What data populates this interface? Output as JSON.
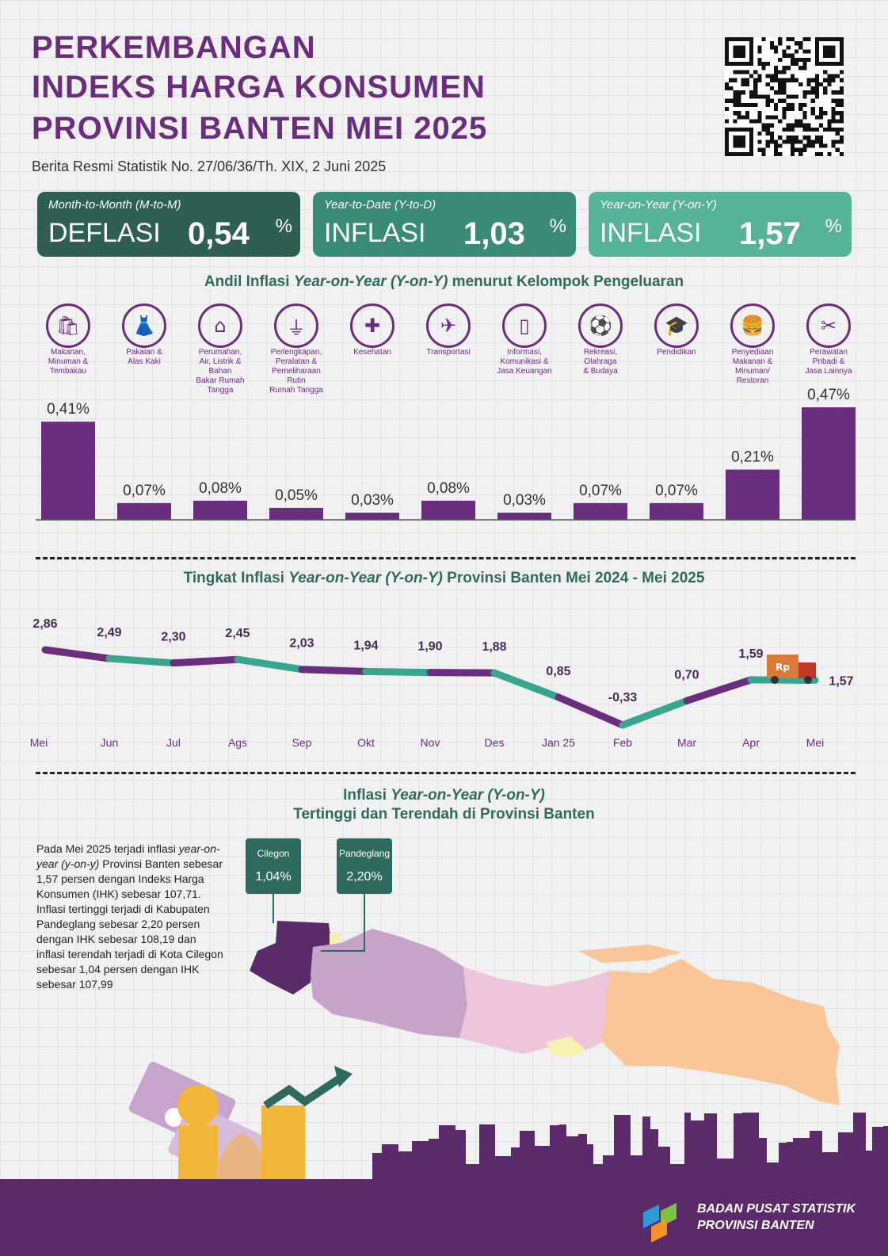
{
  "header": {
    "title_lines": [
      "PERKEMBANGAN",
      "INDEKS HARGA KONSUMEN",
      "PROVINSI BANTEN MEI 2025"
    ],
    "subtitle": "Berita Resmi Statistik No. 27/06/36/Th. XIX, 2 Juni 2025"
  },
  "cards": [
    {
      "label": "Month-to-Month (M-to-M)",
      "kind": "DEFLASI",
      "value": "0,54",
      "unit": "%",
      "color": "#2f5f52"
    },
    {
      "label": "Year-to-Date (Y-to-D)",
      "kind": "INFLASI",
      "value": "1,03",
      "unit": "%",
      "color": "#3a8a78"
    },
    {
      "label": "Year-on-Year (Y-on-Y)",
      "kind": "INFLASI",
      "value": "1,57",
      "unit": "%",
      "color": "#56b39a"
    }
  ],
  "andil": {
    "title_prefix": "Andil Inflasi ",
    "title_italic": "Year-on-Year (Y-on-Y)",
    "title_suffix": " menurut Kelompok Pengeluaran"
  },
  "trend": {
    "title_prefix": "Tingkat Inflasi ",
    "title_italic": "Year-on-Year (Y-on-Y)",
    "title_suffix": " Provinsi Banten Mei 2024 - Mei 2025"
  },
  "map_section": {
    "title_line1_prefix": "Inflasi ",
    "title_line1_italic": "Year-on-Year   (Y-on-Y)",
    "title_line2": "Tertinggi dan Terendah di Provinsi Banten",
    "para_1": "Pada Mei 2025 terjadi inflasi ",
    "para_italic1": "year-on-year",
    "para_italic2": "(y-on-y)",
    "para_2": " Provinsi Banten sebesar 1,57 persen dengan Indeks Harga Konsumen (IHK) sebesar 107,71. Inflasi tertinggi terjadi di Kabupaten Pandeglang sebesar 2,20 persen dengan IHK sebesar 108,19 dan inflasi terendah terjadi di Kota Cilegon sebesar 1,04 persen dengan IHK sebesar 107,99",
    "callouts": [
      {
        "name": "Cilegon",
        "value": "1,04%"
      },
      {
        "name": "Pandeglang",
        "value": "2,20%"
      }
    ]
  },
  "footer": {
    "org_line1": "BADAN PUSAT STATISTIK",
    "org_line2": "PROVINSI BANTEN"
  },
  "truck_label": "Rp",
  "colors": {
    "purple": "#6b2d7e",
    "bar": "#6b2d7e",
    "teal": "#3aa58f",
    "green_dark": "#2e6b5e"
  },
  "chart_data": [
    {
      "type": "bar",
      "categories": [
        "Makanan, Minuman & Tembakau",
        "Pakaian & Alas Kaki",
        "Perumahan, Air, Listrik & Bahan Bakar Rumah Tangga",
        "Perlengkapan, Peralatan & Pemeliharaan Rutin Rumah Tangga",
        "Kesehatan",
        "Transportasi",
        "Informasi, Komunikasi & Jasa Keuangan",
        "Rekreasi, Olahraga & Budaya",
        "Pendidikan",
        "Penyediaan Makanan & Minuman/ Restoran",
        "Perawatan Pribadi & Jasa Lainnya"
      ],
      "label_lines": [
        [
          "Makanan,",
          "Minuman &",
          "Tembakau"
        ],
        [
          "Pakaian &",
          "Alas Kaki"
        ],
        [
          "Perumahan,",
          "Air, Listrik &",
          "Bahan",
          "Bakar Rumah",
          "Tangga"
        ],
        [
          "Perlengkapan,",
          "Peralatan &",
          "Pemeliharaan",
          "Rutin",
          "Rumah Tangga"
        ],
        [
          "Kesehatan"
        ],
        [
          "Transportasi"
        ],
        [
          "Informasi,",
          "Komunikasi &",
          "Jasa Keuangan"
        ],
        [
          "Rekreasi,",
          "Olahraga",
          "& Budaya"
        ],
        [
          "Pendidikan"
        ],
        [
          "Penyediaan",
          "Makanan &",
          "Minuman/",
          "Restoran"
        ],
        [
          "Perawatan",
          "Pribadi &",
          "Jasa Lainnya"
        ]
      ],
      "icons": [
        "shopping-bag-icon",
        "dress-icon",
        "house-icon",
        "plug-icon",
        "first-aid-icon",
        "airplane-icon",
        "smartphone-icon",
        "soccer-icon",
        "graduation-cap-icon",
        "fast-food-icon",
        "scissors-icon"
      ],
      "icon_glyphs": [
        "🛍",
        "👗",
        "⌂",
        "⏚",
        "✚",
        "✈",
        "▯",
        "⚽",
        "🎓",
        "🍔",
        "✂"
      ],
      "values": [
        0.41,
        0.07,
        0.08,
        0.05,
        0.03,
        0.08,
        0.03,
        0.07,
        0.07,
        0.21,
        0.47
      ],
      "value_labels": [
        "0,41%",
        "0,07%",
        "0,08%",
        "0,05%",
        "0,03%",
        "0,08%",
        "0,03%",
        "0,07%",
        "0,07%",
        "0,21%",
        "0,47%"
      ]
    },
    {
      "type": "line",
      "x": [
        "Mei",
        "Jun",
        "Jul",
        "Ags",
        "Sep",
        "Okt",
        "Nov",
        "Des",
        "Jan 25",
        "Feb",
        "Mar",
        "Apr",
        "Mei"
      ],
      "values": [
        2.86,
        2.49,
        2.3,
        2.45,
        2.03,
        1.94,
        1.9,
        1.88,
        0.85,
        -0.33,
        0.7,
        1.59,
        1.57
      ],
      "value_labels": [
        "2,86",
        "2,49",
        "2,30",
        "2,45",
        "2,03",
        "1,94",
        "1,90",
        "1,88",
        "0,85",
        "-0,33",
        "0,70",
        "1,59",
        "1,57"
      ]
    }
  ]
}
